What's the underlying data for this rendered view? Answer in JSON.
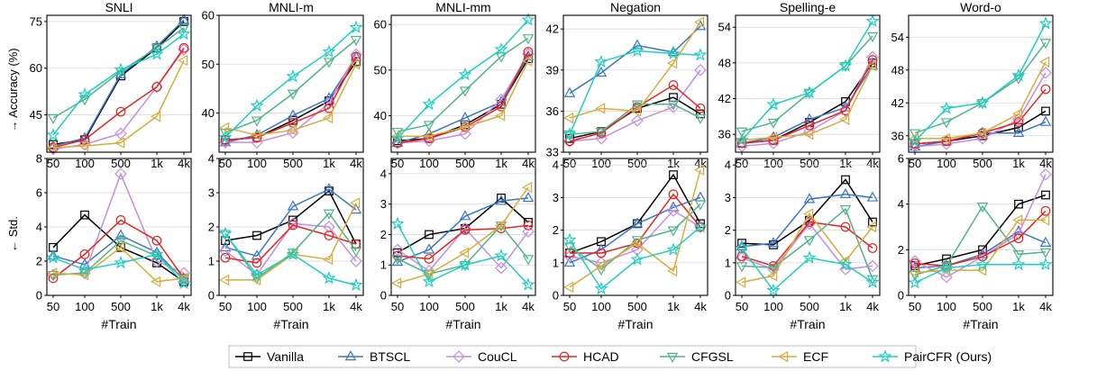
{
  "x_categories": [
    "50",
    "100",
    "500",
    "1k",
    "4k"
  ],
  "xlabel": "#Train",
  "row_ylabels": [
    "→ Accuracy (%)",
    "← Std."
  ],
  "legend": [
    {
      "name": "Vanilla",
      "color": "#000000",
      "marker": "square"
    },
    {
      "name": "BTSCL",
      "color": "#3a76c4",
      "marker": "triangle-up"
    },
    {
      "name": "CouCL",
      "color": "#c48ee0",
      "marker": "diamond"
    },
    {
      "name": "HCAD",
      "color": "#e8231f",
      "marker": "circle"
    },
    {
      "name": "CFGSL",
      "color": "#4fb38a",
      "marker": "triangle-down"
    },
    {
      "name": "ECF",
      "color": "#d8ac3c",
      "marker": "triangle-left"
    },
    {
      "name": "PairCFR (Ours)",
      "color": "#1ecfc0",
      "marker": "star"
    }
  ],
  "chart_data": [
    {
      "type": "line",
      "title": "SNLI",
      "row": 0,
      "col": 0,
      "categories": [
        "50",
        "100",
        "500",
        "1k",
        "4k"
      ],
      "yticks": [
        45,
        60,
        75
      ],
      "ylim": [
        33,
        77
      ],
      "series": [
        {
          "name": "Vanilla",
          "values": [
            35.5,
            37.0,
            57.5,
            66.5,
            75.0
          ]
        },
        {
          "name": "BTSCL",
          "values": [
            35.0,
            37.5,
            58.0,
            67.0,
            75.5
          ]
        },
        {
          "name": "CouCL",
          "values": [
            34.0,
            35.5,
            39.0,
            54.0,
            66.0
          ]
        },
        {
          "name": "HCAD",
          "values": [
            34.5,
            37.0,
            46.0,
            54.0,
            66.5
          ]
        },
        {
          "name": "CFGSL",
          "values": [
            44.0,
            50.0,
            59.0,
            66.5,
            73.0
          ]
        },
        {
          "name": "ECF",
          "values": [
            34.5,
            35.0,
            36.0,
            44.5,
            62.5
          ]
        },
        {
          "name": "PairCFR (Ours)",
          "values": [
            38.5,
            51.5,
            59.5,
            64.5,
            71.0
          ]
        }
      ]
    },
    {
      "type": "line",
      "title": "MNLI-m",
      "row": 0,
      "col": 1,
      "categories": [
        "50",
        "100",
        "500",
        "1k",
        "4k"
      ],
      "yticks": [
        40,
        50,
        60
      ],
      "ylim": [
        32,
        60
      ],
      "series": [
        {
          "name": "Vanilla",
          "values": [
            34.5,
            35.0,
            38.5,
            42.5,
            50.5
          ]
        },
        {
          "name": "BTSCL",
          "values": [
            34.0,
            35.5,
            39.5,
            43.0,
            51.5
          ]
        },
        {
          "name": "CouCL",
          "values": [
            34.0,
            34.0,
            36.0,
            42.0,
            52.0
          ]
        },
        {
          "name": "HCAD",
          "values": [
            34.5,
            35.0,
            38.0,
            41.0,
            51.5
          ]
        },
        {
          "name": "CFGSL",
          "values": [
            36.0,
            38.5,
            44.0,
            50.5,
            55.0
          ]
        },
        {
          "name": "ECF",
          "values": [
            37.0,
            35.5,
            36.5,
            39.0,
            50.0
          ]
        },
        {
          "name": "PairCFR (Ours)",
          "values": [
            35.0,
            41.5,
            47.5,
            52.5,
            57.5
          ]
        }
      ]
    },
    {
      "type": "line",
      "title": "MNLI-mm",
      "row": 0,
      "col": 2,
      "categories": [
        "50",
        "100",
        "500",
        "1k",
        "4k"
      ],
      "yticks": [
        40,
        50,
        60
      ],
      "ylim": [
        32,
        62
      ],
      "series": [
        {
          "name": "Vanilla",
          "values": [
            34.5,
            35.0,
            38.0,
            42.5,
            52.5
          ]
        },
        {
          "name": "BTSCL",
          "values": [
            34.0,
            36.0,
            39.5,
            43.0,
            53.0
          ]
        },
        {
          "name": "CouCL",
          "values": [
            34.0,
            34.5,
            36.0,
            43.5,
            53.5
          ]
        },
        {
          "name": "HCAD",
          "values": [
            34.0,
            35.0,
            37.5,
            42.0,
            54.0
          ]
        },
        {
          "name": "CFGSL",
          "values": [
            36.5,
            38.0,
            45.5,
            53.0,
            57.0
          ]
        },
        {
          "name": "ECF",
          "values": [
            35.5,
            35.5,
            37.5,
            40.0,
            52.0
          ]
        },
        {
          "name": "PairCFR (Ours)",
          "values": [
            35.0,
            42.5,
            49.0,
            54.5,
            61.0
          ]
        }
      ]
    },
    {
      "type": "line",
      "title": "Negation",
      "row": 0,
      "col": 3,
      "categories": [
        "50",
        "100",
        "500",
        "1k",
        "4k"
      ],
      "yticks": [
        33,
        36,
        39,
        42
      ],
      "ylim": [
        33,
        43
      ],
      "series": [
        {
          "name": "Vanilla",
          "values": [
            34.0,
            34.5,
            36.2,
            37.0,
            35.8
          ]
        },
        {
          "name": "BTSCL",
          "values": [
            37.3,
            38.8,
            40.8,
            40.3,
            42.2
          ]
        },
        {
          "name": "CouCL",
          "values": [
            33.8,
            34.0,
            35.3,
            36.3,
            39.0
          ]
        },
        {
          "name": "HCAD",
          "values": [
            33.8,
            34.4,
            36.3,
            37.9,
            36.2
          ]
        },
        {
          "name": "CFGSL",
          "values": [
            34.3,
            34.5,
            36.5,
            36.5,
            35.5
          ]
        },
        {
          "name": "ECF",
          "values": [
            35.5,
            36.2,
            36.0,
            39.5,
            42.5
          ]
        },
        {
          "name": "PairCFR (Ours)",
          "values": [
            34.3,
            39.6,
            40.4,
            40.2,
            40.1
          ]
        }
      ]
    },
    {
      "type": "line",
      "title": "Spelling-e",
      "row": 0,
      "col": 4,
      "categories": [
        "50",
        "100",
        "500",
        "1k",
        "4k"
      ],
      "yticks": [
        36,
        42,
        48,
        54
      ],
      "ylim": [
        33,
        56
      ],
      "series": [
        {
          "name": "Vanilla",
          "values": [
            34.5,
            35.0,
            38.0,
            41.5,
            48.0
          ]
        },
        {
          "name": "BTSCL",
          "values": [
            34.5,
            35.5,
            38.5,
            40.5,
            47.5
          ]
        },
        {
          "name": "CouCL",
          "values": [
            34.0,
            34.5,
            36.5,
            40.0,
            49.0
          ]
        },
        {
          "name": "HCAD",
          "values": [
            34.5,
            35.0,
            37.5,
            40.0,
            48.5
          ]
        },
        {
          "name": "CFGSL",
          "values": [
            36.5,
            38.0,
            43.0,
            47.5,
            52.5
          ]
        },
        {
          "name": "ECF",
          "values": [
            35.0,
            35.5,
            36.0,
            38.5,
            47.5
          ]
        },
        {
          "name": "PairCFR (Ours)",
          "values": [
            35.0,
            41.0,
            43.0,
            47.5,
            55.0
          ]
        }
      ]
    },
    {
      "type": "line",
      "title": "Word-o",
      "row": 0,
      "col": 5,
      "categories": [
        "50",
        "100",
        "500",
        "1k",
        "4k"
      ],
      "yticks": [
        36,
        42,
        48,
        54
      ],
      "ylim": [
        33,
        58
      ],
      "series": [
        {
          "name": "Vanilla",
          "values": [
            34.5,
            35.0,
            36.0,
            37.5,
            40.5
          ]
        },
        {
          "name": "BTSCL",
          "values": [
            34.0,
            35.0,
            36.5,
            36.5,
            38.5
          ]
        },
        {
          "name": "CouCL",
          "values": [
            34.0,
            34.5,
            35.5,
            39.0,
            47.5
          ]
        },
        {
          "name": "HCAD",
          "values": [
            34.5,
            35.0,
            36.5,
            38.5,
            44.5
          ]
        },
        {
          "name": "CFGSL",
          "values": [
            36.5,
            38.5,
            42.0,
            46.5,
            53.0
          ]
        },
        {
          "name": "ECF",
          "values": [
            35.5,
            35.5,
            36.5,
            40.0,
            49.5
          ]
        },
        {
          "name": "PairCFR (Ours)",
          "values": [
            35.0,
            41.0,
            42.0,
            47.0,
            56.5
          ]
        }
      ]
    },
    {
      "type": "line",
      "title": "",
      "row": 1,
      "col": 0,
      "categories": [
        "50",
        "100",
        "500",
        "1k",
        "4k"
      ],
      "yticks": [
        0,
        2,
        4,
        6,
        8
      ],
      "ylim": [
        0,
        8
      ],
      "series": [
        {
          "name": "Vanilla",
          "values": [
            2.8,
            4.7,
            2.8,
            1.9,
            0.8
          ]
        },
        {
          "name": "BTSCL",
          "values": [
            2.3,
            1.8,
            3.5,
            2.5,
            0.9
          ]
        },
        {
          "name": "CouCL",
          "values": [
            1.2,
            1.3,
            7.1,
            2.0,
            1.3
          ]
        },
        {
          "name": "HCAD",
          "values": [
            1.0,
            2.4,
            4.4,
            3.2,
            1.0
          ]
        },
        {
          "name": "CFGSL",
          "values": [
            1.2,
            1.3,
            3.2,
            2.3,
            1.0
          ]
        },
        {
          "name": "ECF",
          "values": [
            1.3,
            1.2,
            2.8,
            0.8,
            1.0
          ]
        },
        {
          "name": "PairCFR (Ours)",
          "values": [
            2.2,
            1.5,
            1.9,
            2.4,
            0.7
          ]
        }
      ]
    },
    {
      "type": "line",
      "title": "",
      "row": 1,
      "col": 1,
      "categories": [
        "50",
        "100",
        "500",
        "1k",
        "4k"
      ],
      "yticks": [
        0,
        1,
        2,
        3,
        4
      ],
      "ylim": [
        0,
        4
      ],
      "series": [
        {
          "name": "Vanilla",
          "values": [
            1.6,
            1.75,
            2.2,
            3.05,
            1.5
          ]
        },
        {
          "name": "BTSCL",
          "values": [
            1.4,
            1.15,
            2.6,
            3.1,
            2.5
          ]
        },
        {
          "name": "CouCL",
          "values": [
            1.3,
            0.6,
            2.1,
            2.0,
            1.0
          ]
        },
        {
          "name": "HCAD",
          "values": [
            1.1,
            0.95,
            2.05,
            1.75,
            1.5
          ]
        },
        {
          "name": "CFGSL",
          "values": [
            1.8,
            0.5,
            1.25,
            2.4,
            1.3
          ]
        },
        {
          "name": "ECF",
          "values": [
            0.45,
            0.45,
            1.2,
            1.05,
            2.7
          ]
        },
        {
          "name": "PairCFR (Ours)",
          "values": [
            1.8,
            0.6,
            1.2,
            0.5,
            0.3
          ]
        }
      ]
    },
    {
      "type": "line",
      "title": "",
      "row": 1,
      "col": 2,
      "categories": [
        "50",
        "100",
        "500",
        "1k",
        "4k"
      ],
      "yticks": [
        0,
        1,
        2,
        3,
        4
      ],
      "ylim": [
        0,
        4.5
      ],
      "series": [
        {
          "name": "Vanilla",
          "values": [
            1.4,
            2.0,
            2.2,
            3.2,
            2.4
          ]
        },
        {
          "name": "BTSCL",
          "values": [
            1.1,
            1.5,
            2.6,
            3.1,
            3.2
          ]
        },
        {
          "name": "CouCL",
          "values": [
            1.5,
            0.8,
            2.2,
            0.9,
            2.1
          ]
        },
        {
          "name": "HCAD",
          "values": [
            1.3,
            1.2,
            2.15,
            2.2,
            2.3
          ]
        },
        {
          "name": "CFGSL",
          "values": [
            1.2,
            0.7,
            1.0,
            2.3,
            1.2
          ]
        },
        {
          "name": "ECF",
          "values": [
            0.4,
            0.7,
            1.4,
            2.3,
            3.55
          ]
        },
        {
          "name": "PairCFR (Ours)",
          "values": [
            2.35,
            0.45,
            1.0,
            1.3,
            0.35
          ]
        }
      ]
    },
    {
      "type": "line",
      "title": "",
      "row": 1,
      "col": 3,
      "categories": [
        "50",
        "100",
        "500",
        "1k",
        "4k"
      ],
      "yticks": [
        0,
        1,
        2,
        3,
        4
      ],
      "ylim": [
        0,
        4.2
      ],
      "series": [
        {
          "name": "Vanilla",
          "values": [
            1.3,
            1.65,
            2.2,
            3.7,
            2.2
          ]
        },
        {
          "name": "BTSCL",
          "values": [
            1.0,
            1.4,
            2.2,
            2.7,
            3.0
          ]
        },
        {
          "name": "CouCL",
          "values": [
            1.2,
            1.0,
            1.4,
            2.6,
            2.1
          ]
        },
        {
          "name": "HCAD",
          "values": [
            1.3,
            1.3,
            1.6,
            3.1,
            2.1
          ]
        },
        {
          "name": "CFGSL",
          "values": [
            1.5,
            0.8,
            1.7,
            2.0,
            2.8
          ]
        },
        {
          "name": "ECF",
          "values": [
            0.25,
            0.9,
            1.6,
            0.75,
            3.85
          ]
        },
        {
          "name": "PairCFR (Ours)",
          "values": [
            1.7,
            0.2,
            1.1,
            1.4,
            2.1
          ]
        }
      ]
    },
    {
      "type": "line",
      "title": "",
      "row": 1,
      "col": 4,
      "categories": [
        "50",
        "100",
        "500",
        "1k",
        "4k"
      ],
      "yticks": [
        0,
        1,
        2,
        3,
        4
      ],
      "ylim": [
        0,
        4.2
      ],
      "series": [
        {
          "name": "Vanilla",
          "values": [
            1.6,
            1.55,
            2.3,
            3.55,
            2.25
          ]
        },
        {
          "name": "BTSCL",
          "values": [
            1.5,
            1.6,
            2.95,
            3.1,
            3.0
          ]
        },
        {
          "name": "CouCL",
          "values": [
            1.15,
            0.8,
            2.2,
            0.8,
            0.9
          ]
        },
        {
          "name": "HCAD",
          "values": [
            1.2,
            0.9,
            2.25,
            2.1,
            1.45
          ]
        },
        {
          "name": "CFGSL",
          "values": [
            0.9,
            0.85,
            1.7,
            2.65,
            0.5
          ]
        },
        {
          "name": "ECF",
          "values": [
            0.4,
            0.6,
            2.5,
            1.05,
            2.1
          ]
        },
        {
          "name": "PairCFR (Ours)",
          "values": [
            1.45,
            0.15,
            1.15,
            0.95,
            0.4
          ]
        }
      ]
    },
    {
      "type": "line",
      "title": "",
      "row": 1,
      "col": 5,
      "categories": [
        "50",
        "100",
        "500",
        "1k",
        "4k"
      ],
      "yticks": [
        0,
        2,
        4,
        6
      ],
      "ylim": [
        0,
        6
      ],
      "series": [
        {
          "name": "Vanilla",
          "values": [
            1.3,
            1.6,
            2.0,
            4.0,
            4.4
          ]
        },
        {
          "name": "BTSCL",
          "values": [
            1.2,
            1.3,
            1.8,
            2.8,
            2.3
          ]
        },
        {
          "name": "CouCL",
          "values": [
            1.5,
            0.8,
            1.7,
            2.7,
            5.3
          ]
        },
        {
          "name": "HCAD",
          "values": [
            1.4,
            1.3,
            1.7,
            2.5,
            3.7
          ]
        },
        {
          "name": "CFGSL",
          "values": [
            0.9,
            1.3,
            3.9,
            1.8,
            1.9
          ]
        },
        {
          "name": "ECF",
          "values": [
            1.0,
            1.1,
            1.1,
            3.3,
            3.3
          ]
        },
        {
          "name": "PairCFR (Ours)",
          "values": [
            0.55,
            1.2,
            1.35,
            1.35,
            1.35
          ]
        }
      ]
    }
  ]
}
